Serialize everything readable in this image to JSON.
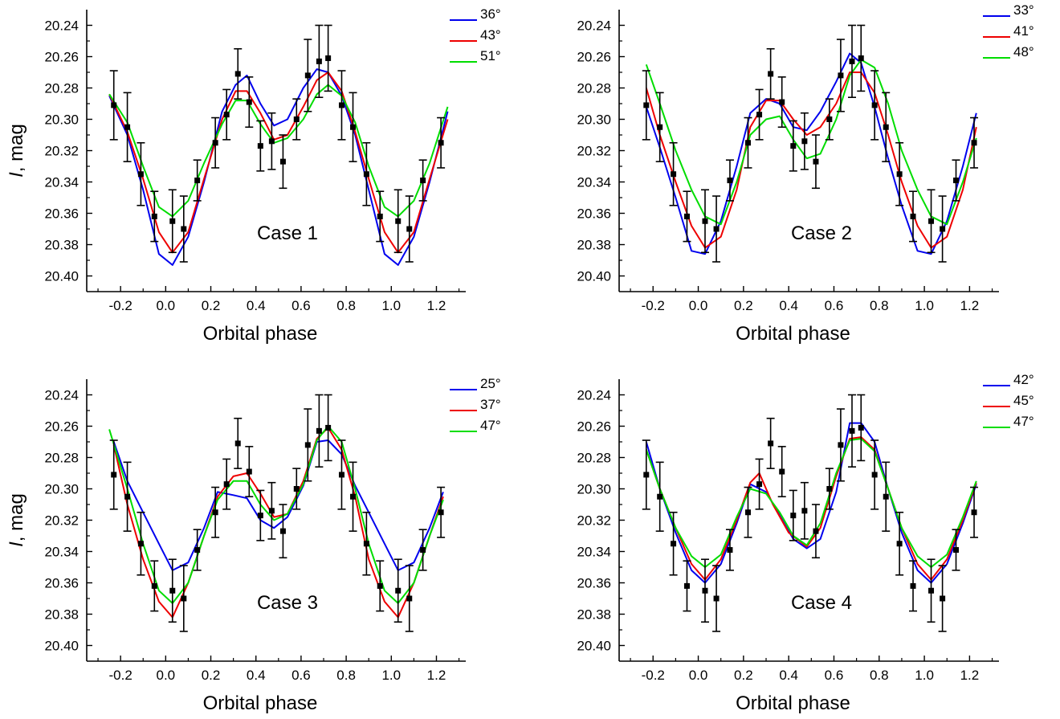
{
  "figure": {
    "ylabel_italic": "I",
    "ylabel_rest": ", mag",
    "xlabel": "Orbital phase",
    "degree_suffix": "°"
  },
  "colors": {
    "blue": "#0000ee",
    "red": "#ee0000",
    "green": "#00dd00",
    "points": "#000000"
  },
  "chart_data": [
    {
      "type": "line",
      "panel": "top-left",
      "annotation": "Case 1",
      "xlabel": "Orbital phase",
      "ylabel": "I, mag",
      "xlim": [
        -0.35,
        1.33
      ],
      "ylim": [
        20.23,
        20.41
      ],
      "y_inverted": true,
      "xticks": [
        "-0.2",
        "0.0",
        "0.2",
        "0.4",
        "0.6",
        "0.8",
        "1.0",
        "1.2"
      ],
      "yticks": [
        "20.24",
        "20.26",
        "20.28",
        "20.30",
        "20.32",
        "20.34",
        "20.36",
        "20.38",
        "20.40"
      ],
      "ylabel_shown": true,
      "legend_position": "top-right",
      "series": [
        {
          "name": "36",
          "color": "blue",
          "x": [
            -0.25,
            -0.17,
            -0.1,
            -0.03,
            0.03,
            0.1,
            0.17,
            0.25,
            0.31,
            0.36,
            0.42,
            0.48,
            0.54,
            0.61,
            0.67,
            0.72,
            0.78,
            0.84,
            0.9,
            0.97,
            1.03,
            1.1,
            1.17,
            1.25
          ],
          "y": [
            20.285,
            20.31,
            20.345,
            20.386,
            20.393,
            20.375,
            20.34,
            20.295,
            20.278,
            20.272,
            20.29,
            20.304,
            20.3,
            20.28,
            20.268,
            20.27,
            20.285,
            20.31,
            20.345,
            20.386,
            20.393,
            20.375,
            20.34,
            20.295
          ]
        },
        {
          "name": "43",
          "color": "red",
          "x": [
            -0.25,
            -0.17,
            -0.1,
            -0.03,
            0.03,
            0.1,
            0.17,
            0.25,
            0.31,
            0.36,
            0.42,
            0.48,
            0.54,
            0.61,
            0.67,
            0.72,
            0.78,
            0.84,
            0.9,
            0.97,
            1.03,
            1.1,
            1.17,
            1.25
          ],
          "y": [
            20.284,
            20.308,
            20.338,
            20.372,
            20.385,
            20.372,
            20.338,
            20.3,
            20.282,
            20.282,
            20.296,
            20.313,
            20.31,
            20.292,
            20.275,
            20.27,
            20.282,
            20.308,
            20.338,
            20.372,
            20.385,
            20.372,
            20.338,
            20.3
          ]
        },
        {
          "name": "51",
          "color": "green",
          "x": [
            -0.25,
            -0.17,
            -0.1,
            -0.03,
            0.03,
            0.1,
            0.17,
            0.25,
            0.31,
            0.36,
            0.42,
            0.48,
            0.54,
            0.61,
            0.67,
            0.72,
            0.78,
            0.84,
            0.9,
            0.97,
            1.03,
            1.1,
            1.17,
            1.25
          ],
          "y": [
            20.284,
            20.302,
            20.33,
            20.356,
            20.362,
            20.352,
            20.328,
            20.303,
            20.288,
            20.288,
            20.303,
            20.315,
            20.312,
            20.3,
            20.284,
            20.278,
            20.285,
            20.302,
            20.33,
            20.356,
            20.362,
            20.352,
            20.328,
            20.292
          ]
        }
      ]
    },
    {
      "type": "line",
      "panel": "top-right",
      "annotation": "Case 2",
      "xlabel": "Orbital phase",
      "ylabel": "I, mag",
      "xlim": [
        -0.35,
        1.33
      ],
      "ylim": [
        20.23,
        20.41
      ],
      "y_inverted": true,
      "xticks": [
        "-0.2",
        "0.0",
        "0.2",
        "0.4",
        "0.6",
        "0.8",
        "1.0",
        "1.2"
      ],
      "yticks": [
        "20.24",
        "20.26",
        "20.28",
        "20.30",
        "20.32",
        "20.34",
        "20.36",
        "20.38",
        "20.40"
      ],
      "ylabel_shown": false,
      "legend_position": "top-right",
      "series": [
        {
          "name": "33",
          "color": "blue",
          "x": [
            -0.23,
            -0.17,
            -0.1,
            -0.03,
            0.03,
            0.1,
            0.17,
            0.23,
            0.3,
            0.36,
            0.42,
            0.48,
            0.54,
            0.61,
            0.67,
            0.72,
            0.78,
            0.84,
            0.9,
            0.97,
            1.03,
            1.1,
            1.17,
            1.23
          ],
          "y": [
            20.292,
            20.318,
            20.35,
            20.384,
            20.386,
            20.365,
            20.33,
            20.296,
            20.287,
            20.29,
            20.305,
            20.307,
            20.295,
            20.276,
            20.258,
            20.264,
            20.292,
            20.325,
            20.355,
            20.384,
            20.386,
            20.365,
            20.33,
            20.296
          ]
        },
        {
          "name": "41",
          "color": "red",
          "x": [
            -0.23,
            -0.17,
            -0.1,
            -0.03,
            0.03,
            0.1,
            0.17,
            0.23,
            0.3,
            0.36,
            0.42,
            0.48,
            0.54,
            0.61,
            0.67,
            0.72,
            0.78,
            0.84,
            0.9,
            0.97,
            1.03,
            1.1,
            1.17,
            1.23
          ],
          "y": [
            20.28,
            20.31,
            20.34,
            20.368,
            20.382,
            20.375,
            20.345,
            20.305,
            20.288,
            20.288,
            20.3,
            20.31,
            20.305,
            20.29,
            20.27,
            20.27,
            20.283,
            20.31,
            20.34,
            20.368,
            20.382,
            20.375,
            20.345,
            20.305
          ]
        },
        {
          "name": "48",
          "color": "green",
          "x": [
            -0.23,
            -0.17,
            -0.1,
            -0.03,
            0.03,
            0.1,
            0.17,
            0.23,
            0.3,
            0.36,
            0.42,
            0.48,
            0.54,
            0.61,
            0.67,
            0.72,
            0.78,
            0.84,
            0.9,
            0.97,
            1.03,
            1.1,
            1.17,
            1.23
          ],
          "y": [
            20.265,
            20.29,
            20.32,
            20.345,
            20.362,
            20.367,
            20.34,
            20.31,
            20.3,
            20.298,
            20.313,
            20.325,
            20.322,
            20.3,
            20.272,
            20.262,
            20.267,
            20.29,
            20.32,
            20.345,
            20.362,
            20.367,
            20.34,
            20.312
          ]
        }
      ]
    },
    {
      "type": "line",
      "panel": "bottom-left",
      "annotation": "Case 3",
      "xlabel": "Orbital phase",
      "ylabel": "I, mag",
      "xlim": [
        -0.35,
        1.33
      ],
      "ylim": [
        20.23,
        20.41
      ],
      "y_inverted": true,
      "xticks": [
        "-0.2",
        "0.0",
        "0.2",
        "0.4",
        "0.6",
        "0.8",
        "1.0",
        "1.2"
      ],
      "yticks": [
        "20.24",
        "20.26",
        "20.28",
        "20.30",
        "20.32",
        "20.34",
        "20.36",
        "20.38",
        "20.40"
      ],
      "ylabel_shown": true,
      "legend_position": "top-right",
      "series": [
        {
          "name": "25",
          "color": "blue",
          "x": [
            -0.23,
            -0.17,
            -0.1,
            -0.03,
            0.03,
            0.1,
            0.17,
            0.23,
            0.3,
            0.36,
            0.42,
            0.48,
            0.54,
            0.61,
            0.67,
            0.72,
            0.78,
            0.84,
            0.9,
            0.97,
            1.03,
            1.1,
            1.17,
            1.23
          ],
          "y": [
            20.27,
            20.295,
            20.315,
            20.335,
            20.352,
            20.347,
            20.325,
            20.302,
            20.304,
            20.306,
            20.32,
            20.325,
            20.318,
            20.298,
            20.27,
            20.269,
            20.278,
            20.298,
            20.315,
            20.335,
            20.352,
            20.347,
            20.325,
            20.302
          ]
        },
        {
          "name": "37",
          "color": "red",
          "x": [
            -0.23,
            -0.17,
            -0.1,
            -0.03,
            0.03,
            0.1,
            0.17,
            0.23,
            0.3,
            0.36,
            0.42,
            0.48,
            0.54,
            0.61,
            0.67,
            0.72,
            0.78,
            0.84,
            0.9,
            0.97,
            1.03,
            1.1,
            1.17,
            1.23
          ],
          "y": [
            20.272,
            20.31,
            20.345,
            20.372,
            20.382,
            20.36,
            20.33,
            20.305,
            20.292,
            20.29,
            20.303,
            20.318,
            20.316,
            20.295,
            20.268,
            20.261,
            20.275,
            20.305,
            20.345,
            20.372,
            20.382,
            20.36,
            20.33,
            20.305
          ]
        },
        {
          "name": "47",
          "color": "green",
          "x": [
            -0.25,
            -0.17,
            -0.1,
            -0.03,
            0.03,
            0.1,
            0.17,
            0.23,
            0.3,
            0.36,
            0.42,
            0.48,
            0.54,
            0.61,
            0.67,
            0.72,
            0.78,
            0.84,
            0.9,
            0.97,
            1.03,
            1.1,
            1.17,
            1.23
          ],
          "y": [
            20.262,
            20.3,
            20.335,
            20.365,
            20.373,
            20.36,
            20.33,
            20.307,
            20.295,
            20.295,
            20.31,
            20.32,
            20.316,
            20.297,
            20.269,
            20.26,
            20.27,
            20.3,
            20.335,
            20.365,
            20.373,
            20.36,
            20.33,
            20.307
          ]
        }
      ]
    },
    {
      "type": "line",
      "panel": "bottom-right",
      "annotation": "Case 4",
      "xlabel": "Orbital phase",
      "ylabel": "I, mag",
      "xlim": [
        -0.35,
        1.33
      ],
      "ylim": [
        20.23,
        20.41
      ],
      "y_inverted": true,
      "xticks": [
        "-0.2",
        "0.0",
        "0.2",
        "0.4",
        "0.6",
        "0.8",
        "1.0",
        "1.2"
      ],
      "yticks": [
        "20.24",
        "20.26",
        "20.28",
        "20.30",
        "20.32",
        "20.34",
        "20.36",
        "20.38",
        "20.40"
      ],
      "ylabel_shown": false,
      "legend_position": "top-right",
      "series": [
        {
          "name": "42",
          "color": "blue",
          "x": [
            -0.23,
            -0.17,
            -0.1,
            -0.03,
            0.03,
            0.1,
            0.17,
            0.23,
            0.3,
            0.36,
            0.42,
            0.48,
            0.54,
            0.61,
            0.67,
            0.72,
            0.78,
            0.84,
            0.9,
            0.97,
            1.03,
            1.1,
            1.17,
            1.23
          ],
          "y": [
            20.27,
            20.3,
            20.328,
            20.352,
            20.36,
            20.348,
            20.322,
            20.297,
            20.302,
            20.317,
            20.332,
            20.338,
            20.332,
            20.302,
            20.258,
            20.258,
            20.27,
            20.3,
            20.328,
            20.352,
            20.36,
            20.348,
            20.322,
            20.297
          ]
        },
        {
          "name": "45",
          "color": "red",
          "x": [
            -0.23,
            -0.17,
            -0.1,
            -0.03,
            0.03,
            0.1,
            0.17,
            0.23,
            0.27,
            0.33,
            0.4,
            0.48,
            0.54,
            0.61,
            0.67,
            0.72,
            0.78,
            0.84,
            0.9,
            0.97,
            1.03,
            1.1,
            1.17,
            1.23
          ],
          "y": [
            20.275,
            20.3,
            20.325,
            20.348,
            20.358,
            20.345,
            20.32,
            20.296,
            20.29,
            20.31,
            20.328,
            20.337,
            20.325,
            20.292,
            20.268,
            20.267,
            20.275,
            20.3,
            20.325,
            20.348,
            20.358,
            20.345,
            20.32,
            20.296
          ]
        },
        {
          "name": "47",
          "color": "green",
          "x": [
            -0.23,
            -0.17,
            -0.1,
            -0.03,
            0.03,
            0.1,
            0.17,
            0.23,
            0.3,
            0.36,
            0.42,
            0.48,
            0.54,
            0.61,
            0.67,
            0.72,
            0.78,
            0.84,
            0.9,
            0.97,
            1.03,
            1.1,
            1.17,
            1.23
          ],
          "y": [
            20.275,
            20.3,
            20.325,
            20.343,
            20.35,
            20.342,
            20.318,
            20.3,
            20.303,
            20.315,
            20.33,
            20.336,
            20.322,
            20.29,
            20.269,
            20.268,
            20.276,
            20.3,
            20.325,
            20.343,
            20.35,
            20.342,
            20.318,
            20.295
          ]
        }
      ]
    }
  ],
  "observations": {
    "phase": [
      -0.23,
      -0.17,
      -0.11,
      -0.05,
      0.03,
      0.08,
      0.14,
      0.22,
      0.27,
      0.32,
      0.37,
      0.42,
      0.47,
      0.52,
      0.58,
      0.63,
      0.68,
      0.72,
      0.78,
      0.83,
      0.89,
      0.95,
      1.03,
      1.08,
      1.14,
      1.22
    ],
    "mag": [
      20.291,
      20.305,
      20.335,
      20.362,
      20.365,
      20.37,
      20.339,
      20.315,
      20.297,
      20.271,
      20.289,
      20.317,
      20.314,
      20.327,
      20.3,
      20.272,
      20.263,
      20.261,
      20.291,
      20.305,
      20.335,
      20.362,
      20.365,
      20.37,
      20.339,
      20.315
    ],
    "err": [
      0.022,
      0.022,
      0.02,
      0.016,
      0.02,
      0.021,
      0.013,
      0.016,
      0.016,
      0.016,
      0.016,
      0.016,
      0.018,
      0.017,
      0.013,
      0.023,
      0.023,
      0.021,
      0.022,
      0.022,
      0.02,
      0.016,
      0.02,
      0.021,
      0.013,
      0.016
    ]
  }
}
